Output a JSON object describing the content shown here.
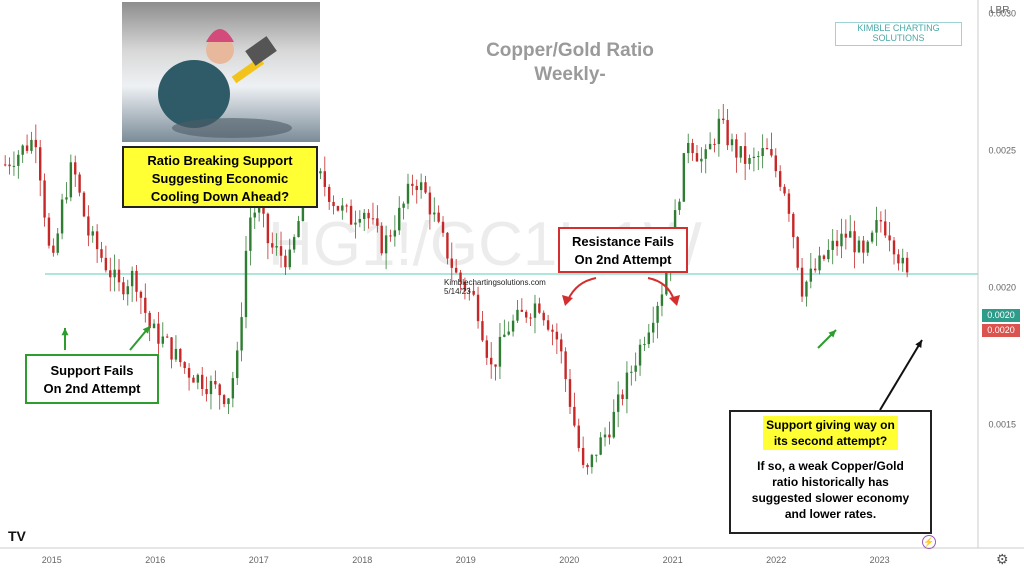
{
  "chart_data": {
    "type": "candlestick",
    "title": "Copper/Gold Ratio",
    "subtitle": "Weekly-",
    "x_ticks": [
      "2015",
      "2016",
      "2017",
      "2018",
      "2019",
      "2020",
      "2021",
      "2022",
      "2023"
    ],
    "y_ticks": [
      "0.0030",
      "0.0025",
      "0.0020",
      "0.0015"
    ],
    "ylim": [
      0.00105,
      0.00305
    ],
    "y_unit_label": "LBR",
    "support_level": 0.00205,
    "price_tags": [
      {
        "value": "0.0020",
        "color": "#2e9c8a"
      },
      {
        "value": "0.0020",
        "color": "#d9534f"
      }
    ],
    "series": [
      {
        "name": "HG1!/GC1!",
        "x": [
          2014.55,
          2014.7,
          2014.85,
          2015.0,
          2015.1,
          2015.2,
          2015.35,
          2015.5,
          2015.65,
          2015.8,
          2015.95,
          2016.1,
          2016.3,
          2016.5,
          2016.7,
          2016.8,
          2016.9,
          2017.0,
          2017.1,
          2017.3,
          2017.45,
          2017.6,
          2017.75,
          2017.9,
          2018.0,
          2018.2,
          2018.4,
          2018.5,
          2018.6,
          2018.75,
          2018.9,
          2019.1,
          2019.25,
          2019.4,
          2019.55,
          2019.7,
          2019.9,
          2020.0,
          2020.15,
          2020.25,
          2020.4,
          2020.6,
          2020.75,
          2020.9,
          2021.0,
          2021.15,
          2021.3,
          2021.45,
          2021.6,
          2021.75,
          2021.9,
          2022.1,
          2022.25,
          2022.35,
          2022.45,
          2022.55,
          2022.7,
          2022.85,
          2023.0,
          2023.1,
          2023.2,
          2023.3
        ],
        "values": [
          0.00245,
          0.0025,
          0.00255,
          0.00205,
          0.0023,
          0.00245,
          0.0022,
          0.0021,
          0.002,
          0.00205,
          0.00185,
          0.0018,
          0.0017,
          0.00165,
          0.0016,
          0.00175,
          0.00225,
          0.0023,
          0.00215,
          0.0021,
          0.00235,
          0.0024,
          0.0023,
          0.00225,
          0.0023,
          0.00215,
          0.0023,
          0.0024,
          0.00235,
          0.0022,
          0.00205,
          0.00195,
          0.0017,
          0.00185,
          0.0019,
          0.00195,
          0.0018,
          0.0016,
          0.0013,
          0.0014,
          0.0015,
          0.0017,
          0.00185,
          0.002,
          0.0022,
          0.00255,
          0.00245,
          0.0026,
          0.0025,
          0.00245,
          0.0025,
          0.00235,
          0.002,
          0.00205,
          0.0021,
          0.00215,
          0.0022,
          0.0021,
          0.00225,
          0.0022,
          0.0021,
          0.002
        ]
      }
    ],
    "watermark": "HG1!/GC1!, 1W",
    "source_stamp": [
      "Kimblechartingsolutions.com",
      "5/14/23"
    ]
  },
  "logo": {
    "line1": "KIMBLE CHARTING",
    "line2": "SOLUTIONS"
  },
  "callouts": {
    "photo_caption": [
      "Ratio Breaking Support",
      "Suggesting Economic",
      "Cooling Down Ahead?"
    ],
    "resistance": [
      "Resistance Fails",
      "On 2nd Attempt"
    ],
    "support": [
      "Support Fails",
      "On 2nd Attempt"
    ],
    "bottom_right_highlight": [
      "Support giving way on",
      "its second attempt?"
    ],
    "bottom_right_body": [
      "If so, a weak Copper/Gold",
      "ratio historically has",
      "suggested slower economy",
      "and lower rates."
    ]
  },
  "colors": {
    "up": "#2e7d32",
    "down": "#c62828",
    "support": "#7fd6c7",
    "accent_yellow": "#ffff33",
    "arrow_green": "#2e9c2e",
    "arrow_red": "#d32f2f"
  },
  "icons": {
    "tv_logo": "tradingview-logo",
    "gear": "gear-icon",
    "bolt": "lightning-icon"
  }
}
